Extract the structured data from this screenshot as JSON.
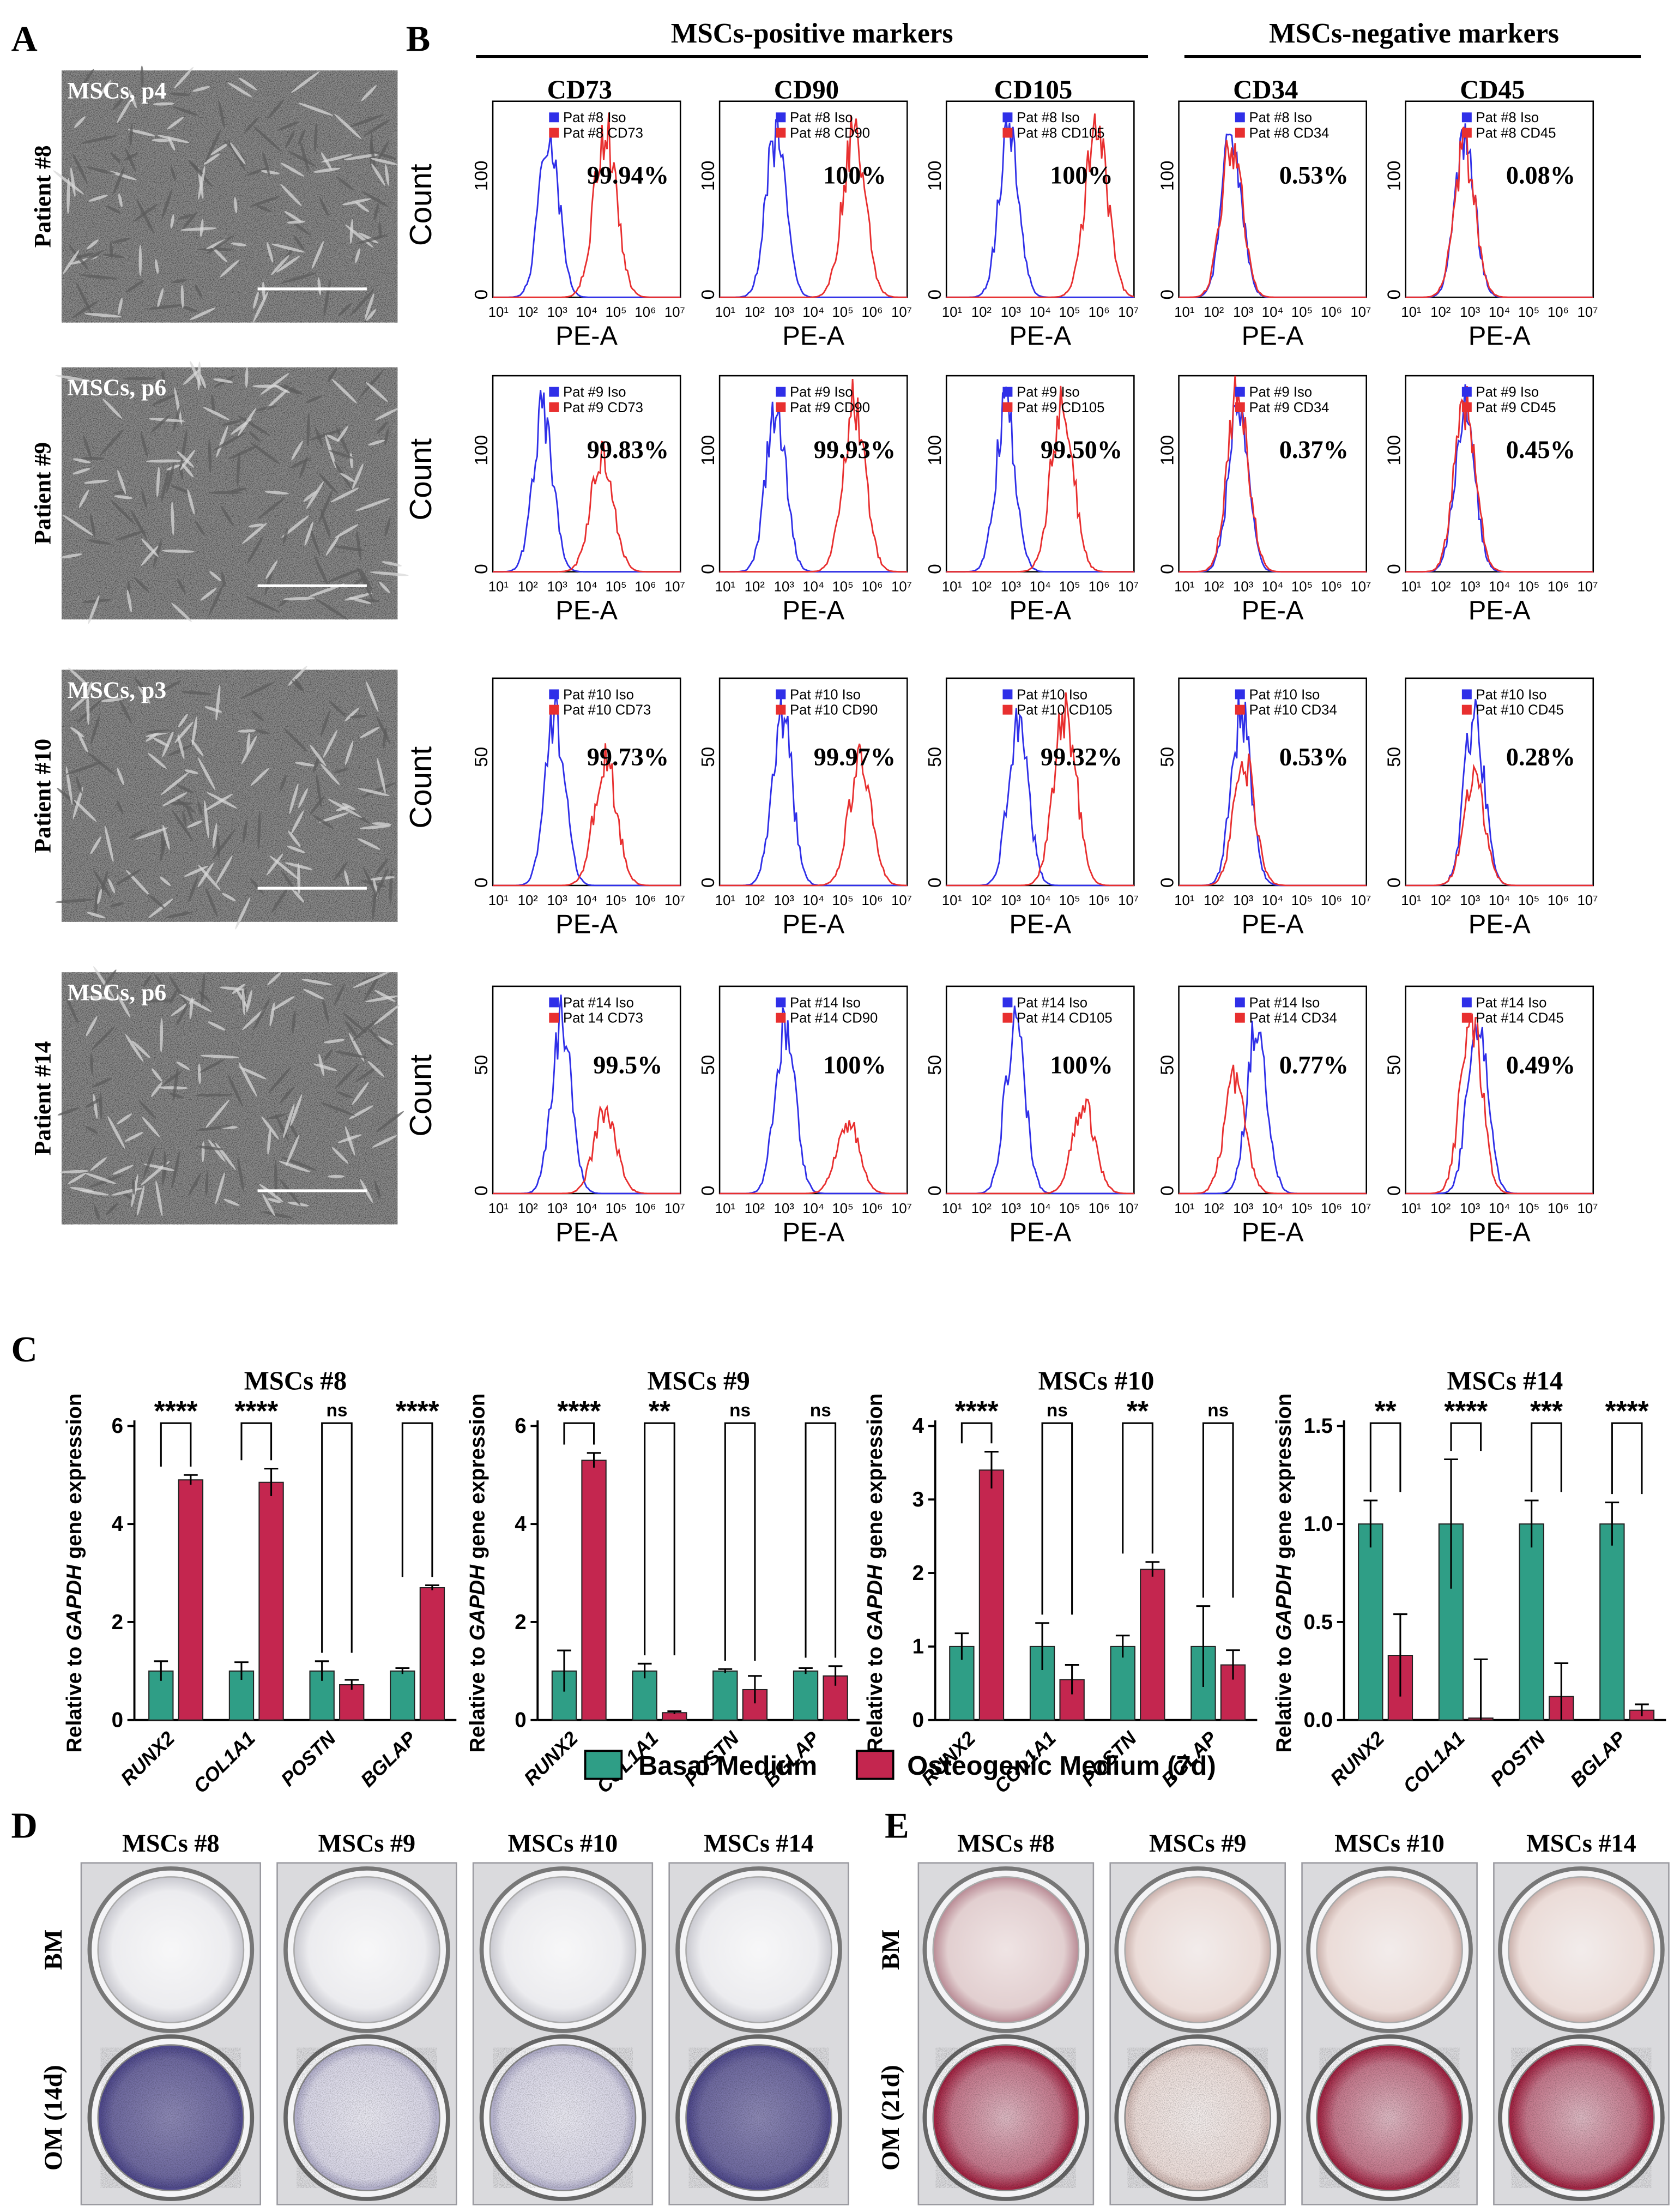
{
  "panel_letters": {
    "a": "A",
    "b": "B",
    "c": "C",
    "d": "D",
    "e": "E"
  },
  "panel_a": {
    "rows": [
      {
        "patient": "Patient #8",
        "passage": "MSCs, p4"
      },
      {
        "patient": "Patient #9",
        "passage": "MSCs, p6"
      },
      {
        "patient": "Patient #10",
        "passage": "MSCs, p3"
      },
      {
        "patient": "Patient #14",
        "passage": "MSCs, p6"
      }
    ]
  },
  "panel_b": {
    "group_positive": "MSCs-positive markers",
    "group_negative": "MSCs-negative markers",
    "markers": [
      "CD73",
      "CD90",
      "CD105",
      "CD34",
      "CD45"
    ],
    "x_label": "PE-A",
    "y_label": "Count",
    "x_ticks": [
      "10¹",
      "10²",
      "10³",
      "10⁴",
      "10⁵",
      "10⁶",
      "10⁷"
    ],
    "rows": [
      {
        "y_ticks": [
          "0",
          "100"
        ],
        "cells": [
          {
            "iso": "Pat #8 Iso",
            "stain": "Pat #8 CD73",
            "pct": "99.94%"
          },
          {
            "iso": "Pat #8 Iso",
            "stain": "Pat #8 CD90",
            "pct": "100%"
          },
          {
            "iso": "Pat #8 Iso",
            "stain": "Pat #8 CD105",
            "pct": "100%"
          },
          {
            "iso": "Pat #8 Iso",
            "stain": "Pat #8 CD34",
            "pct": "0.53%"
          },
          {
            "iso": "Pat #8 Iso",
            "stain": "Pat #8 CD45",
            "pct": "0.08%"
          }
        ]
      },
      {
        "y_ticks": [
          "0",
          "100"
        ],
        "cells": [
          {
            "iso": "Pat #9 Iso",
            "stain": "Pat #9 CD73",
            "pct": "99.83%"
          },
          {
            "iso": "Pat #9 Iso",
            "stain": "Pat #9 CD90",
            "pct": "99.93%"
          },
          {
            "iso": "Pat #9 Iso",
            "stain": "Pat #9 CD105",
            "pct": "99.50%"
          },
          {
            "iso": "Pat #9 Iso",
            "stain": "Pat #9 CD34",
            "pct": "0.37%"
          },
          {
            "iso": "Pat #9 Iso",
            "stain": "Pat #9 CD45",
            "pct": "0.45%"
          }
        ]
      },
      {
        "y_ticks": [
          "0",
          "50"
        ],
        "cells": [
          {
            "iso": "Pat #10 Iso",
            "stain": "Pat #10 CD73",
            "pct": "99.73%"
          },
          {
            "iso": "Pat #10 Iso",
            "stain": "Pat #10 CD90",
            "pct": "99.97%"
          },
          {
            "iso": "Pat #10 Iso",
            "stain": "Pat #10 CD105",
            "pct": "99.32%"
          },
          {
            "iso": "Pat #10 Iso",
            "stain": "Pat #10 CD34",
            "pct": "0.53%"
          },
          {
            "iso": "Pat #10 Iso",
            "stain": "Pat #10 CD45",
            "pct": "0.28%"
          }
        ]
      },
      {
        "y_ticks": [
          "0",
          "50"
        ],
        "cells": [
          {
            "iso": "Pat #14 Iso",
            "stain": "Pat 14 CD73",
            "pct": "99.5%"
          },
          {
            "iso": "Pat #14 Iso",
            "stain": "Pat #14 CD90",
            "pct": "100%"
          },
          {
            "iso": "Pat #14 Iso",
            "stain": "Pat #14 CD105",
            "pct": "100%"
          },
          {
            "iso": "Pat #14 Iso",
            "stain": "Pat #14 CD34",
            "pct": "0.77%"
          },
          {
            "iso": "Pat #14 Iso",
            "stain": "Pat #14 CD45",
            "pct": "0.49%"
          }
        ]
      }
    ]
  },
  "chart_data": [
    {
      "type": "bar",
      "title": "MSCs #8",
      "ylabel_pre": "Relative to ",
      "ylabel_italic": "GAPDH",
      "ylabel_post": " gene expression",
      "categories": [
        "RUNX2",
        "COL1A1",
        "POSTN",
        "BGLAP"
      ],
      "ylim": [
        0,
        6
      ],
      "yticks": [
        0,
        2,
        4,
        6
      ],
      "series": [
        {
          "name": "Basal Medium",
          "values": [
            1.0,
            1.0,
            1.0,
            1.0
          ],
          "errors": [
            0.2,
            0.18,
            0.2,
            0.06
          ]
        },
        {
          "name": "Osteogenic Medium (7d)",
          "values": [
            4.9,
            4.85,
            0.72,
            2.7
          ],
          "errors": [
            0.1,
            0.28,
            0.1,
            0.05
          ]
        }
      ],
      "significance": [
        "****",
        "****",
        "ns",
        "****"
      ]
    },
    {
      "type": "bar",
      "title": "MSCs #9",
      "ylabel_pre": "Relative to ",
      "ylabel_italic": "GAPDH",
      "ylabel_post": " gene expression",
      "categories": [
        "RUNX2",
        "COL1A1",
        "POSTN",
        "BGLAP"
      ],
      "ylim": [
        0,
        6
      ],
      "yticks": [
        0,
        2,
        4,
        6
      ],
      "series": [
        {
          "name": "Basal Medium",
          "values": [
            1.0,
            1.0,
            1.0,
            1.0
          ],
          "errors": [
            0.42,
            0.15,
            0.04,
            0.06
          ]
        },
        {
          "name": "Osteogenic Medium (7d)",
          "values": [
            5.3,
            0.15,
            0.62,
            0.9
          ],
          "errors": [
            0.15,
            0.03,
            0.28,
            0.2
          ]
        }
      ],
      "significance": [
        "****",
        "**",
        "ns",
        "ns"
      ]
    },
    {
      "type": "bar",
      "title": "MSCs #10",
      "ylabel_pre": "Relative to ",
      "ylabel_italic": "GAPDH",
      "ylabel_post": " gene expression",
      "categories": [
        "RUNX2",
        "COL1A1",
        "POSTN",
        "BGLAP"
      ],
      "ylim": [
        0,
        4
      ],
      "yticks": [
        0,
        1,
        2,
        3,
        4
      ],
      "series": [
        {
          "name": "Basal Medium",
          "values": [
            1.0,
            1.0,
            1.0,
            1.0
          ],
          "errors": [
            0.18,
            0.32,
            0.15,
            0.55
          ]
        },
        {
          "name": "Osteogenic Medium (7d)",
          "values": [
            3.4,
            0.55,
            2.05,
            0.75
          ],
          "errors": [
            0.25,
            0.2,
            0.1,
            0.2
          ]
        }
      ],
      "significance": [
        "****",
        "ns",
        "**",
        "ns"
      ]
    },
    {
      "type": "bar",
      "title": "MSCs #14",
      "ylabel_pre": "Relative to ",
      "ylabel_italic": "GAPDH",
      "ylabel_post": " gene expression",
      "categories": [
        "RUNX2",
        "COL1A1",
        "POSTN",
        "BGLAP"
      ],
      "ylim": [
        0,
        1.5
      ],
      "yticks": [
        "0.0",
        "0.5",
        "1.0",
        "1.5"
      ],
      "series": [
        {
          "name": "Basal Medium",
          "values": [
            1.0,
            1.0,
            1.0,
            1.0
          ],
          "errors": [
            0.12,
            0.33,
            0.12,
            0.11
          ]
        },
        {
          "name": "Osteogenic Medium (7d)",
          "values": [
            0.33,
            0.01,
            0.12,
            0.05
          ],
          "errors": [
            0.21,
            0.3,
            0.17,
            0.03
          ]
        }
      ],
      "significance": [
        "**",
        "****",
        "***",
        "****"
      ]
    }
  ],
  "legend": {
    "basal": "Basal Medium",
    "osteogenic": "Osteogenic Medium (7d)"
  },
  "panel_d": {
    "samples": [
      "MSCs #8",
      "MSCs #9",
      "MSCs #10",
      "MSCs #14"
    ],
    "row_top": "BM",
    "row_bottom": "OM (14d)"
  },
  "panel_e": {
    "samples": [
      "MSCs #8",
      "MSCs #9",
      "MSCs #10",
      "MSCs #14"
    ],
    "row_top": "BM",
    "row_bottom": "OM (21d)"
  },
  "colors": {
    "iso": "#2f2fe8",
    "stain": "#e82f2f",
    "basal": "#2f9e86",
    "osteo": "#c4264f",
    "alp": "#4a4488",
    "ars": "#9c1a3a"
  }
}
